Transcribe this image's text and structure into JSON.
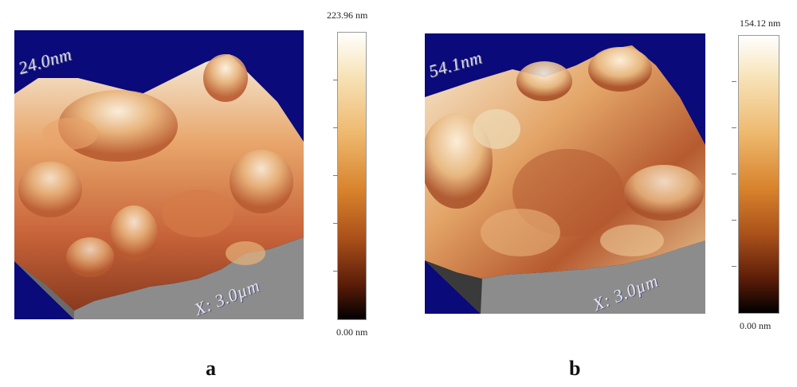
{
  "panels": [
    {
      "letter": "a",
      "height_label": "24.0nm",
      "x_axis_label": "X: 3.0µm",
      "scale_max": "223.96 nm",
      "scale_min": "0.00 nm"
    },
    {
      "letter": "b",
      "height_label": "54.1nm",
      "x_axis_label": "X: 3.0µm",
      "scale_max": "154.12 nm",
      "scale_min": "0.00 nm"
    }
  ],
  "colors": {
    "background_field": "#0a0a7a",
    "surface_light": "#f3e9d2",
    "surface_mid": "#d9884a",
    "surface_dark": "#7a2a14",
    "side_wall": "#8c8c8c",
    "colorbar_top": "#ffffff",
    "colorbar_bottom": "#000000"
  }
}
